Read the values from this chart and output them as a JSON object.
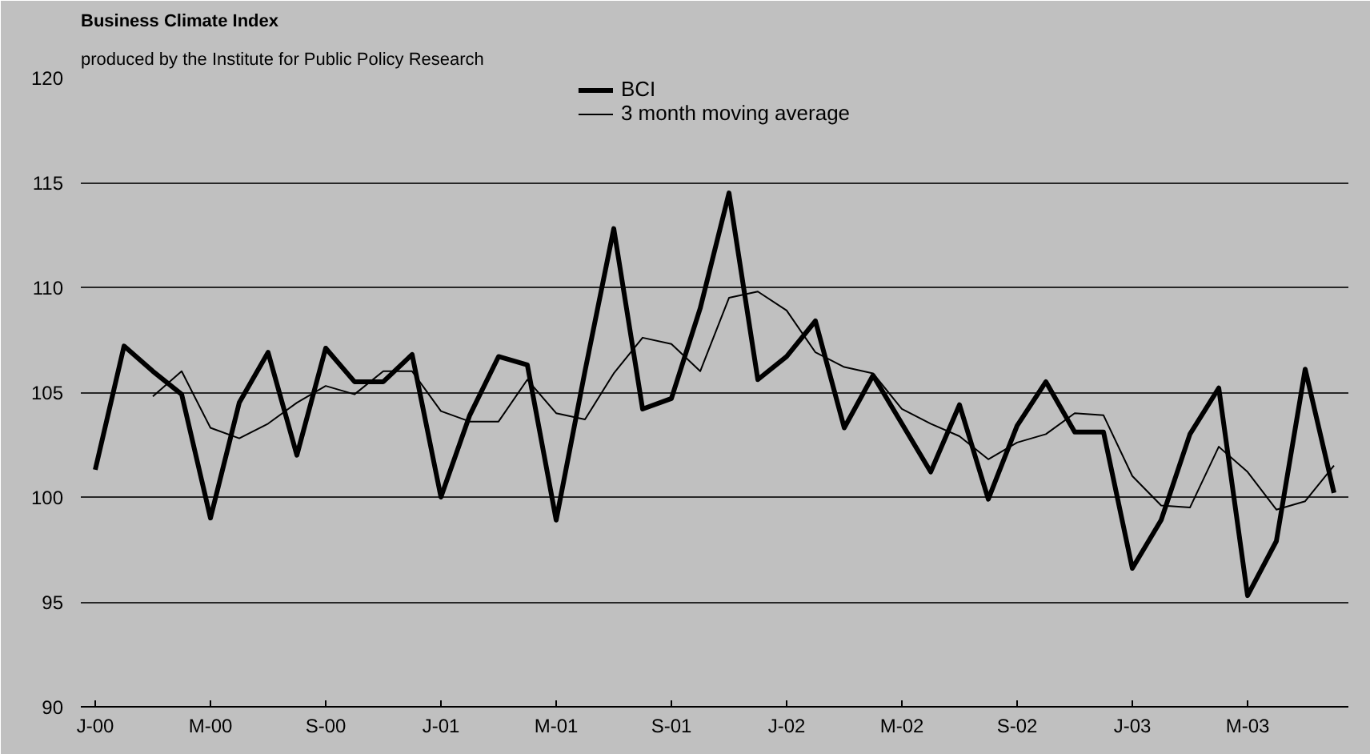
{
  "chart_data": {
    "type": "line",
    "title": "Business Climate Index",
    "subtitle": "produced by the Institute for Public Policy Research",
    "categories": [
      "J-00",
      null,
      null,
      null,
      "M-00",
      null,
      null,
      null,
      "S-00",
      null,
      null,
      null,
      "J-01",
      null,
      null,
      null,
      "M-01",
      null,
      null,
      null,
      "S-01",
      null,
      null,
      null,
      "J-02",
      null,
      null,
      null,
      "M-02",
      null,
      null,
      null,
      "S-02",
      null,
      null,
      null,
      "J-03",
      null,
      null,
      null,
      "M-03",
      null,
      null,
      null
    ],
    "series": [
      {
        "name": "BCI",
        "color": "#000000",
        "values": [
          101.3,
          107.2,
          106.0,
          104.9,
          99.0,
          104.5,
          106.9,
          102.0,
          107.1,
          105.5,
          105.5,
          106.8,
          100.0,
          103.9,
          106.7,
          106.3,
          98.9,
          106.0,
          112.8,
          104.2,
          104.7,
          109.0,
          114.5,
          105.6,
          106.7,
          108.4,
          103.3,
          105.8,
          103.5,
          101.2,
          104.4,
          99.9,
          103.4,
          105.5,
          103.1,
          103.1,
          96.6,
          98.9,
          103.0,
          105.2,
          95.3,
          97.9,
          106.1,
          100.2
        ]
      },
      {
        "name": "3 month moving average",
        "color": "#000000",
        "values": [
          null,
          null,
          104.8,
          106.0,
          103.3,
          102.8,
          103.5,
          104.5,
          105.3,
          104.9,
          106.0,
          106.0,
          104.1,
          103.6,
          103.6,
          105.6,
          104.0,
          103.7,
          105.9,
          107.6,
          107.3,
          106.0,
          109.5,
          109.8,
          108.9,
          106.9,
          106.2,
          105.9,
          104.2,
          103.5,
          102.9,
          101.8,
          102.6,
          103.0,
          104.0,
          103.9,
          101.0,
          99.6,
          99.5,
          102.4,
          101.2,
          99.4,
          99.8,
          101.5
        ]
      }
    ],
    "ylim": [
      90,
      120
    ],
    "yticks": [
      90,
      95,
      100,
      105,
      110,
      115,
      120
    ],
    "grid": "y",
    "legend": "top",
    "marker": "none",
    "line_style": "solid"
  }
}
